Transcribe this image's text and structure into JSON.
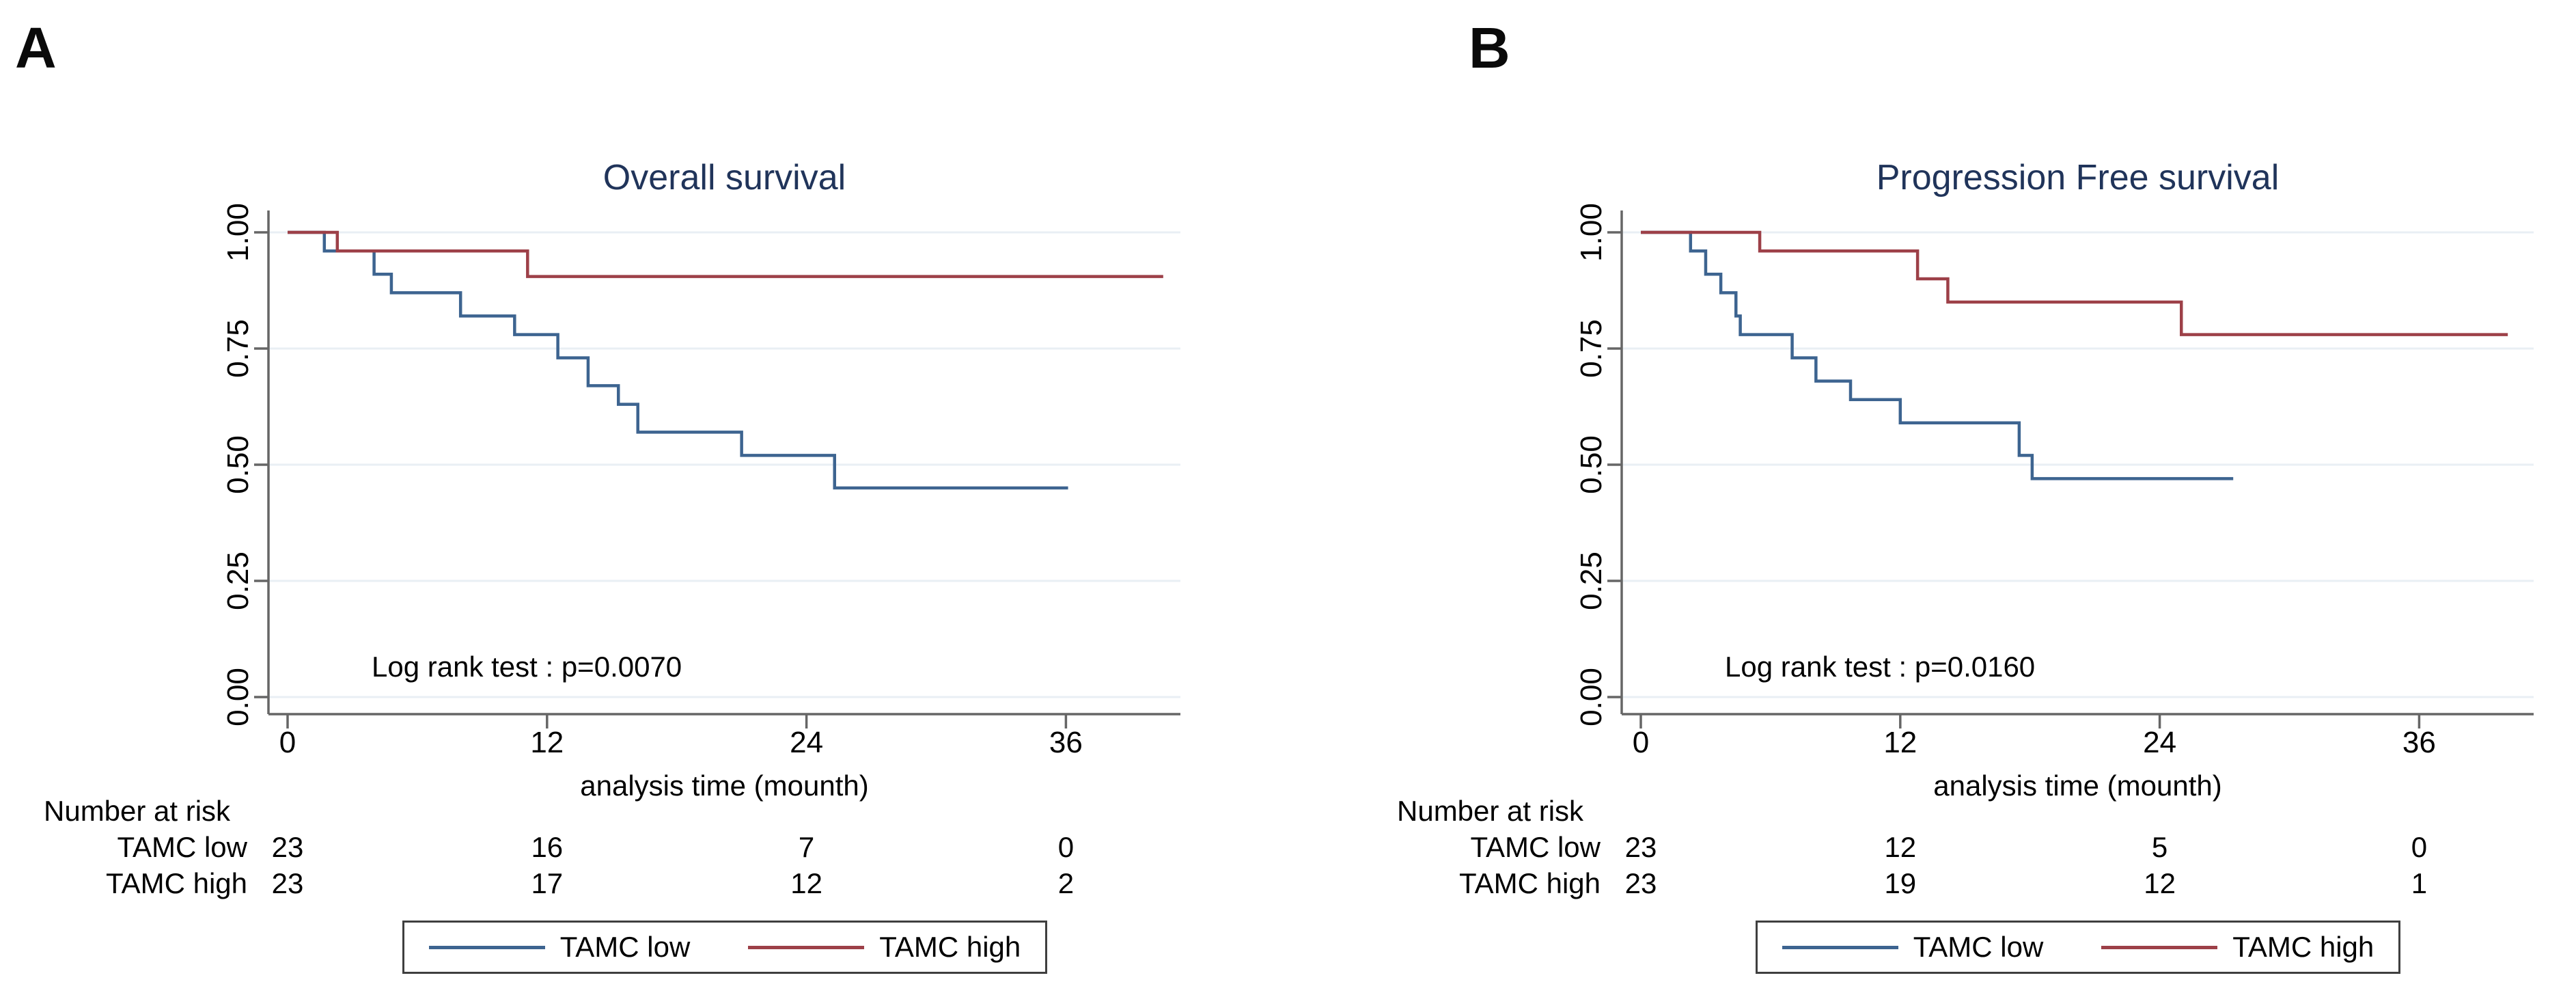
{
  "figure": {
    "background": "#ffffff",
    "title_color": "#20345a",
    "axis_color": "#666666",
    "gridline_color": "#e9eff4",
    "text_color": "#000000"
  },
  "chart_data": [
    {
      "type": "line",
      "subtype": "kaplan-meier-step",
      "panel_label": "A",
      "title": "Overall survival",
      "annotation": "Log rank test : p=0.0070",
      "xlabel": "analysis time (mounth)",
      "xticks": [
        0,
        12,
        24,
        36
      ],
      "yticks": [
        "0.00",
        "0.25",
        "0.50",
        "0.75",
        "1.00"
      ],
      "xlim": [
        0,
        41.3
      ],
      "ylim": [
        0,
        1
      ],
      "grid": "horizontal",
      "legend_position": "bottom-center",
      "series": [
        {
          "name": "TAMC low",
          "color": "#3d6490",
          "start": [
            0,
            1.0
          ],
          "drops": [
            [
              1.7,
              0.96
            ],
            [
              4.0,
              0.91
            ],
            [
              4.8,
              0.87
            ],
            [
              8.0,
              0.82
            ],
            [
              10.5,
              0.78
            ],
            [
              12.5,
              0.73
            ],
            [
              13.9,
              0.67
            ],
            [
              15.3,
              0.63
            ],
            [
              16.2,
              0.57
            ],
            [
              21.0,
              0.52
            ],
            [
              25.3,
              0.45
            ]
          ],
          "end": 36.1
        },
        {
          "name": "TAMC high",
          "color": "#9d4048",
          "start": [
            0,
            1.0
          ],
          "drops": [
            [
              2.3,
              0.96
            ],
            [
              11.1,
              0.905
            ]
          ],
          "end": 40.5
        }
      ],
      "risk_table": {
        "title": "Number at risk",
        "times": [
          0,
          12,
          24,
          36
        ],
        "rows": [
          {
            "name": "TAMC low",
            "counts": [
              23,
              16,
              7,
              0
            ]
          },
          {
            "name": "TAMC high",
            "counts": [
              23,
              17,
              12,
              2
            ]
          }
        ]
      },
      "legend": [
        {
          "label": "TAMC low",
          "color": "#3d6490"
        },
        {
          "label": "TAMC high",
          "color": "#9d4048"
        }
      ]
    },
    {
      "type": "line",
      "subtype": "kaplan-meier-step",
      "panel_label": "B",
      "title": "Progression Free survival",
      "annotation": "Log rank test : p=0.0160",
      "xlabel": "analysis time (mounth)",
      "xticks": [
        0,
        12,
        24,
        36
      ],
      "yticks": [
        "0.00",
        "0.25",
        "0.50",
        "0.75",
        "1.00"
      ],
      "xlim": [
        0,
        41.3
      ],
      "ylim": [
        0,
        1
      ],
      "grid": "horizontal",
      "legend_position": "bottom-center",
      "series": [
        {
          "name": "TAMC low",
          "color": "#3d6490",
          "start": [
            0,
            1.0
          ],
          "drops": [
            [
              2.3,
              0.96
            ],
            [
              3.0,
              0.91
            ],
            [
              3.7,
              0.87
            ],
            [
              4.4,
              0.82
            ],
            [
              4.6,
              0.78
            ],
            [
              7.0,
              0.73
            ],
            [
              8.1,
              0.68
            ],
            [
              9.7,
              0.64
            ],
            [
              12.0,
              0.59
            ],
            [
              17.5,
              0.52
            ],
            [
              18.1,
              0.47
            ]
          ],
          "end": 27.4
        },
        {
          "name": "TAMC high",
          "color": "#9d4048",
          "start": [
            0,
            1.0
          ],
          "drops": [
            [
              5.5,
              0.96
            ],
            [
              12.8,
              0.9
            ],
            [
              14.2,
              0.85
            ],
            [
              25.0,
              0.78
            ]
          ],
          "end": 40.1
        }
      ],
      "risk_table": {
        "title": "Number at risk",
        "times": [
          0,
          12,
          24,
          36
        ],
        "rows": [
          {
            "name": "TAMC low",
            "counts": [
              23,
              12,
              5,
              0
            ]
          },
          {
            "name": "TAMC high",
            "counts": [
              23,
              19,
              12,
              1
            ]
          }
        ]
      },
      "legend": [
        {
          "label": "TAMC low",
          "color": "#3d6490"
        },
        {
          "label": "TAMC high",
          "color": "#9d4048"
        }
      ]
    }
  ]
}
